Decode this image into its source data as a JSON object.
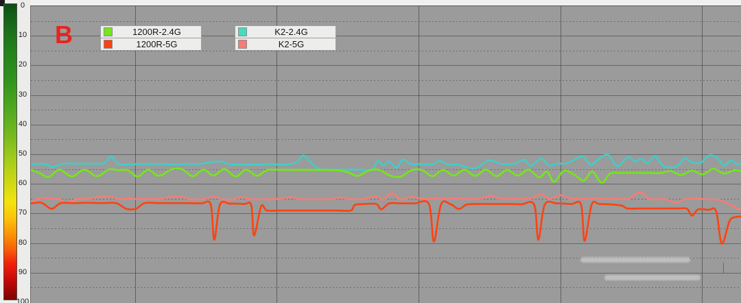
{
  "annotation": {
    "label": "B",
    "color": "#e62420"
  },
  "colors": {
    "page_background": "#f0f0ee",
    "plot_background": "#9b9b9b"
  },
  "colorbar": {
    "description": "signal-strength-gradient-0-to-100",
    "stops": [
      "#0d4f12",
      "#176218",
      "#1f7a1a",
      "#2f921c",
      "#4ea81e",
      "#7aba1f",
      "#a0cb1c",
      "#cdd714",
      "#f2e40d",
      "#fcc60a",
      "#fb9307",
      "#f85f08",
      "#ef1f0b",
      "#c00808",
      "#7c0202"
    ],
    "positions": [
      0,
      5,
      12,
      25,
      35,
      45,
      52,
      60,
      67,
      72,
      78,
      83,
      88,
      94,
      100
    ]
  },
  "y_axis": {
    "tick_labels": [
      "0",
      "10",
      "20",
      "30",
      "40",
      "50",
      "60",
      "70",
      "80",
      "90",
      "100"
    ],
    "min": 0,
    "max": 100
  },
  "legend": {
    "groups": [
      {
        "items": [
          {
            "label": "1200R-2.4G",
            "color": "#76e51b"
          },
          {
            "label": "1200R-5G",
            "color": "#fc4213"
          }
        ]
      },
      {
        "items": [
          {
            "label": "K2-2.4G",
            "color": "#45dcc0"
          },
          {
            "label": "K2-5G",
            "color": "#f57d76"
          }
        ]
      }
    ]
  },
  "chart_data": {
    "type": "line",
    "title": "",
    "xlabel": "",
    "ylabel": "",
    "x_axis": {
      "range_pct": [
        0,
        100
      ],
      "tick_labels_visible": false
    },
    "y_axis": {
      "range": [
        0,
        100
      ],
      "inverted": true,
      "tick_step": 10
    },
    "grid": {
      "horizontal_step": 5,
      "vertical_line_positions_pct": [
        14.7,
        34.6,
        54.5,
        74.5,
        94.4
      ]
    },
    "legend_position": "top-left",
    "series": [
      {
        "name": "K2-5G",
        "color": "#f57d76",
        "points": [
          [
            0,
            66.5
          ],
          [
            1,
            65.0
          ],
          [
            2.5,
            65.0
          ],
          [
            4,
            65.1
          ],
          [
            5,
            66.4
          ],
          [
            6.5,
            65.1
          ],
          [
            8,
            65.0
          ],
          [
            9.7,
            64.4
          ],
          [
            11.3,
            64.4
          ],
          [
            12.2,
            65.1
          ],
          [
            14,
            65.1
          ],
          [
            16,
            65.1
          ],
          [
            18,
            65.1
          ],
          [
            19.9,
            64.4
          ],
          [
            21.4,
            64.4
          ],
          [
            22.3,
            65.2
          ],
          [
            24,
            65.2
          ],
          [
            25.8,
            64.3
          ],
          [
            27,
            65.2
          ],
          [
            28.5,
            65.3
          ],
          [
            29.5,
            64.5
          ],
          [
            31,
            65.2
          ],
          [
            33,
            65.2
          ],
          [
            35,
            65.1
          ],
          [
            36.5,
            64.5
          ],
          [
            38,
            65.2
          ],
          [
            40,
            65.2
          ],
          [
            42,
            65.2
          ],
          [
            43.5,
            64.6
          ],
          [
            45,
            65.2
          ],
          [
            47,
            65.1
          ],
          [
            48.4,
            64.2
          ],
          [
            49.5,
            65.3
          ],
          [
            50.8,
            63.2
          ],
          [
            52,
            65.3
          ],
          [
            53.5,
            64.4
          ],
          [
            55,
            65.0
          ],
          [
            57,
            65.0
          ],
          [
            59,
            65.0
          ],
          [
            61,
            65.0
          ],
          [
            63,
            65.0
          ],
          [
            64.8,
            64.0
          ],
          [
            66,
            65.0
          ],
          [
            68,
            65.0
          ],
          [
            70,
            65.0
          ],
          [
            71.8,
            63.6
          ],
          [
            73,
            65.0
          ],
          [
            74.5,
            63.8
          ],
          [
            76,
            65.0
          ],
          [
            78,
            65.0
          ],
          [
            80,
            65.0
          ],
          [
            82,
            65.0
          ],
          [
            84,
            65.1
          ],
          [
            85.7,
            62.8
          ],
          [
            87,
            65.1
          ],
          [
            89,
            65.1
          ],
          [
            90.8,
            66.3
          ],
          [
            92,
            65.2
          ],
          [
            93.5,
            65.0
          ],
          [
            95,
            65.2
          ],
          [
            96.5,
            65.3
          ],
          [
            97.5,
            66.0
          ],
          [
            98.5,
            67.2
          ],
          [
            100,
            69.0
          ]
        ]
      },
      {
        "name": "K2-2.4G",
        "color": "#45cbc6",
        "points": [
          [
            0,
            53.4
          ],
          [
            2,
            53.3
          ],
          [
            3,
            54.3
          ],
          [
            4.5,
            53.2
          ],
          [
            6.5,
            53.2
          ],
          [
            8.5,
            53.2
          ],
          [
            10.3,
            53.0
          ],
          [
            11.3,
            50.7
          ],
          [
            12.3,
            53.3
          ],
          [
            14,
            53.4
          ],
          [
            16,
            53.3
          ],
          [
            18,
            53.3
          ],
          [
            20,
            53.4
          ],
          [
            22,
            53.3
          ],
          [
            24,
            53.2
          ],
          [
            25.5,
            52.6
          ],
          [
            26.8,
            52.5
          ],
          [
            28,
            53.4
          ],
          [
            30,
            53.5
          ],
          [
            32,
            53.5
          ],
          [
            34,
            53.4
          ],
          [
            36,
            53.5
          ],
          [
            37.5,
            52.5
          ],
          [
            38.3,
            50.4
          ],
          [
            39.5,
            53.0
          ],
          [
            40.5,
            55.0
          ],
          [
            42,
            55.2
          ],
          [
            44,
            55.2
          ],
          [
            46,
            55.2
          ],
          [
            48,
            55.1
          ],
          [
            48.8,
            52.2
          ],
          [
            49.6,
            53.8
          ],
          [
            50.4,
            52.5
          ],
          [
            51.5,
            54.5
          ],
          [
            52.3,
            51.8
          ],
          [
            53.5,
            53.3
          ],
          [
            55,
            53.3
          ],
          [
            56.5,
            53.4
          ],
          [
            57.5,
            52.2
          ],
          [
            58.6,
            53.4
          ],
          [
            60,
            53.5
          ],
          [
            61.5,
            54.5
          ],
          [
            62.7,
            54.6
          ],
          [
            64.5,
            52.0
          ],
          [
            66,
            53.2
          ],
          [
            68,
            53.2
          ],
          [
            69.4,
            51.8
          ],
          [
            70.3,
            54.0
          ],
          [
            71.8,
            51.5
          ],
          [
            72.9,
            53.8
          ],
          [
            74,
            53.2
          ],
          [
            75.5,
            53.0
          ],
          [
            77.6,
            50.8
          ],
          [
            78.8,
            53.5
          ],
          [
            80.2,
            51.0
          ],
          [
            81.3,
            50.3
          ],
          [
            82.5,
            54.0
          ],
          [
            84,
            51.0
          ],
          [
            85,
            52.5
          ],
          [
            85.8,
            51.5
          ],
          [
            86.8,
            53.0
          ],
          [
            87.8,
            50.6
          ],
          [
            89,
            54.0
          ],
          [
            90.8,
            54.2
          ],
          [
            92,
            51.4
          ],
          [
            93,
            52.8
          ],
          [
            94.3,
            52.8
          ],
          [
            95.3,
            50.5
          ],
          [
            96.5,
            51.0
          ],
          [
            97.5,
            53.8
          ],
          [
            98.5,
            52.0
          ],
          [
            99.3,
            53.5
          ],
          [
            100,
            52.8
          ]
        ]
      },
      {
        "name": "1200R-2.4G",
        "color": "#76e51b",
        "points": [
          [
            0,
            55.3
          ],
          [
            1.2,
            56.3
          ],
          [
            2.5,
            57.7
          ],
          [
            4,
            55.2
          ],
          [
            5.8,
            57.5
          ],
          [
            7.5,
            55.2
          ],
          [
            9.3,
            57.4
          ],
          [
            11,
            55.1
          ],
          [
            12.2,
            55.4
          ],
          [
            13.6,
            55.4
          ],
          [
            15,
            57.5
          ],
          [
            16.5,
            55.2
          ],
          [
            18,
            57.3
          ],
          [
            19.8,
            55.1
          ],
          [
            21.3,
            55.1
          ],
          [
            22.8,
            57.4
          ],
          [
            24.3,
            55.2
          ],
          [
            25.7,
            57.2
          ],
          [
            27.2,
            55.0
          ],
          [
            28.8,
            57.5
          ],
          [
            30.3,
            55.2
          ],
          [
            31.8,
            57.3
          ],
          [
            33.3,
            55.3
          ],
          [
            35.5,
            55.3
          ],
          [
            38,
            55.3
          ],
          [
            40.5,
            55.3
          ],
          [
            43,
            55.4
          ],
          [
            44.5,
            56.0
          ],
          [
            46,
            57.3
          ],
          [
            47.5,
            55.5
          ],
          [
            49,
            55.3
          ],
          [
            50.5,
            57.2
          ],
          [
            52,
            57.6
          ],
          [
            53.5,
            55.4
          ],
          [
            55,
            55.3
          ],
          [
            56.5,
            57.4
          ],
          [
            58,
            55.3
          ],
          [
            59.5,
            57.2
          ],
          [
            61,
            55.2
          ],
          [
            62.5,
            57.3
          ],
          [
            64,
            55.2
          ],
          [
            65.5,
            57.4
          ],
          [
            67,
            55.3
          ],
          [
            68.5,
            57.2
          ],
          [
            70,
            55.2
          ],
          [
            71.5,
            57.8
          ],
          [
            72.6,
            55.8
          ],
          [
            73.6,
            59.3
          ],
          [
            75,
            55.6
          ],
          [
            76.5,
            57.0
          ],
          [
            77.8,
            58.9
          ],
          [
            79,
            55.8
          ],
          [
            80.3,
            59.7
          ],
          [
            81.5,
            56.5
          ],
          [
            83,
            56.3
          ],
          [
            85,
            56.3
          ],
          [
            87,
            56.3
          ],
          [
            88.5,
            56.4
          ],
          [
            90,
            55.7
          ],
          [
            91.5,
            57.0
          ],
          [
            93,
            55.5
          ],
          [
            94.5,
            56.8
          ],
          [
            96,
            54.9
          ],
          [
            97.5,
            56.5
          ],
          [
            99,
            55.4
          ],
          [
            100,
            55.8
          ]
        ]
      },
      {
        "name": "1200R-5G",
        "color": "#fb4413",
        "points": [
          [
            0,
            66.6
          ],
          [
            1.5,
            66.4
          ],
          [
            2.9,
            68.4
          ],
          [
            4.2,
            66.5
          ],
          [
            6,
            66.5
          ],
          [
            8,
            66.4
          ],
          [
            10,
            66.5
          ],
          [
            12,
            66.5
          ],
          [
            13.4,
            68.4
          ],
          [
            14.8,
            68.4
          ],
          [
            16,
            66.5
          ],
          [
            18,
            66.5
          ],
          [
            20,
            66.5
          ],
          [
            22,
            66.5
          ],
          [
            24,
            66.6
          ],
          [
            25.3,
            66.9
          ],
          [
            25.8,
            78.9
          ],
          [
            26.6,
            67.0
          ],
          [
            28,
            66.7
          ],
          [
            30,
            66.8
          ],
          [
            31,
            67.2
          ],
          [
            31.4,
            77.4
          ],
          [
            32.4,
            67.6
          ],
          [
            33.2,
            69.0
          ],
          [
            35,
            69.0
          ],
          [
            38,
            69.0
          ],
          [
            41,
            69.0
          ],
          [
            43,
            69.0
          ],
          [
            45,
            69.0
          ],
          [
            45.6,
            67.1
          ],
          [
            47,
            66.8
          ],
          [
            48.6,
            66.8
          ],
          [
            49.3,
            68.6
          ],
          [
            50.4,
            66.6
          ],
          [
            52,
            66.6
          ],
          [
            54,
            66.6
          ],
          [
            56,
            66.8
          ],
          [
            56.7,
            79.5
          ],
          [
            57.7,
            66.9
          ],
          [
            59,
            66.8
          ],
          [
            60.2,
            68.5
          ],
          [
            61.3,
            67.0
          ],
          [
            63,
            66.8
          ],
          [
            65,
            66.8
          ],
          [
            67,
            66.8
          ],
          [
            69,
            66.9
          ],
          [
            70.8,
            67.0
          ],
          [
            71.4,
            78.9
          ],
          [
            72.3,
            67.0
          ],
          [
            74,
            66.6
          ],
          [
            76,
            66.8
          ],
          [
            77.4,
            67.0
          ],
          [
            77.9,
            79.3
          ],
          [
            78.9,
            67.0
          ],
          [
            80,
            66.8
          ],
          [
            82,
            67.0
          ],
          [
            83.2,
            67.4
          ],
          [
            83.9,
            68.3
          ],
          [
            85.5,
            68.3
          ],
          [
            87,
            68.3
          ],
          [
            89,
            68.3
          ],
          [
            91,
            68.3
          ],
          [
            92.3,
            68.4
          ],
          [
            93,
            70.7
          ],
          [
            93.9,
            68.6
          ],
          [
            95.3,
            68.8
          ],
          [
            96.4,
            69.2
          ],
          [
            97.2,
            80.2
          ],
          [
            98.3,
            72.5
          ],
          [
            99.2,
            71.2
          ],
          [
            100,
            71.0
          ]
        ]
      }
    ]
  }
}
